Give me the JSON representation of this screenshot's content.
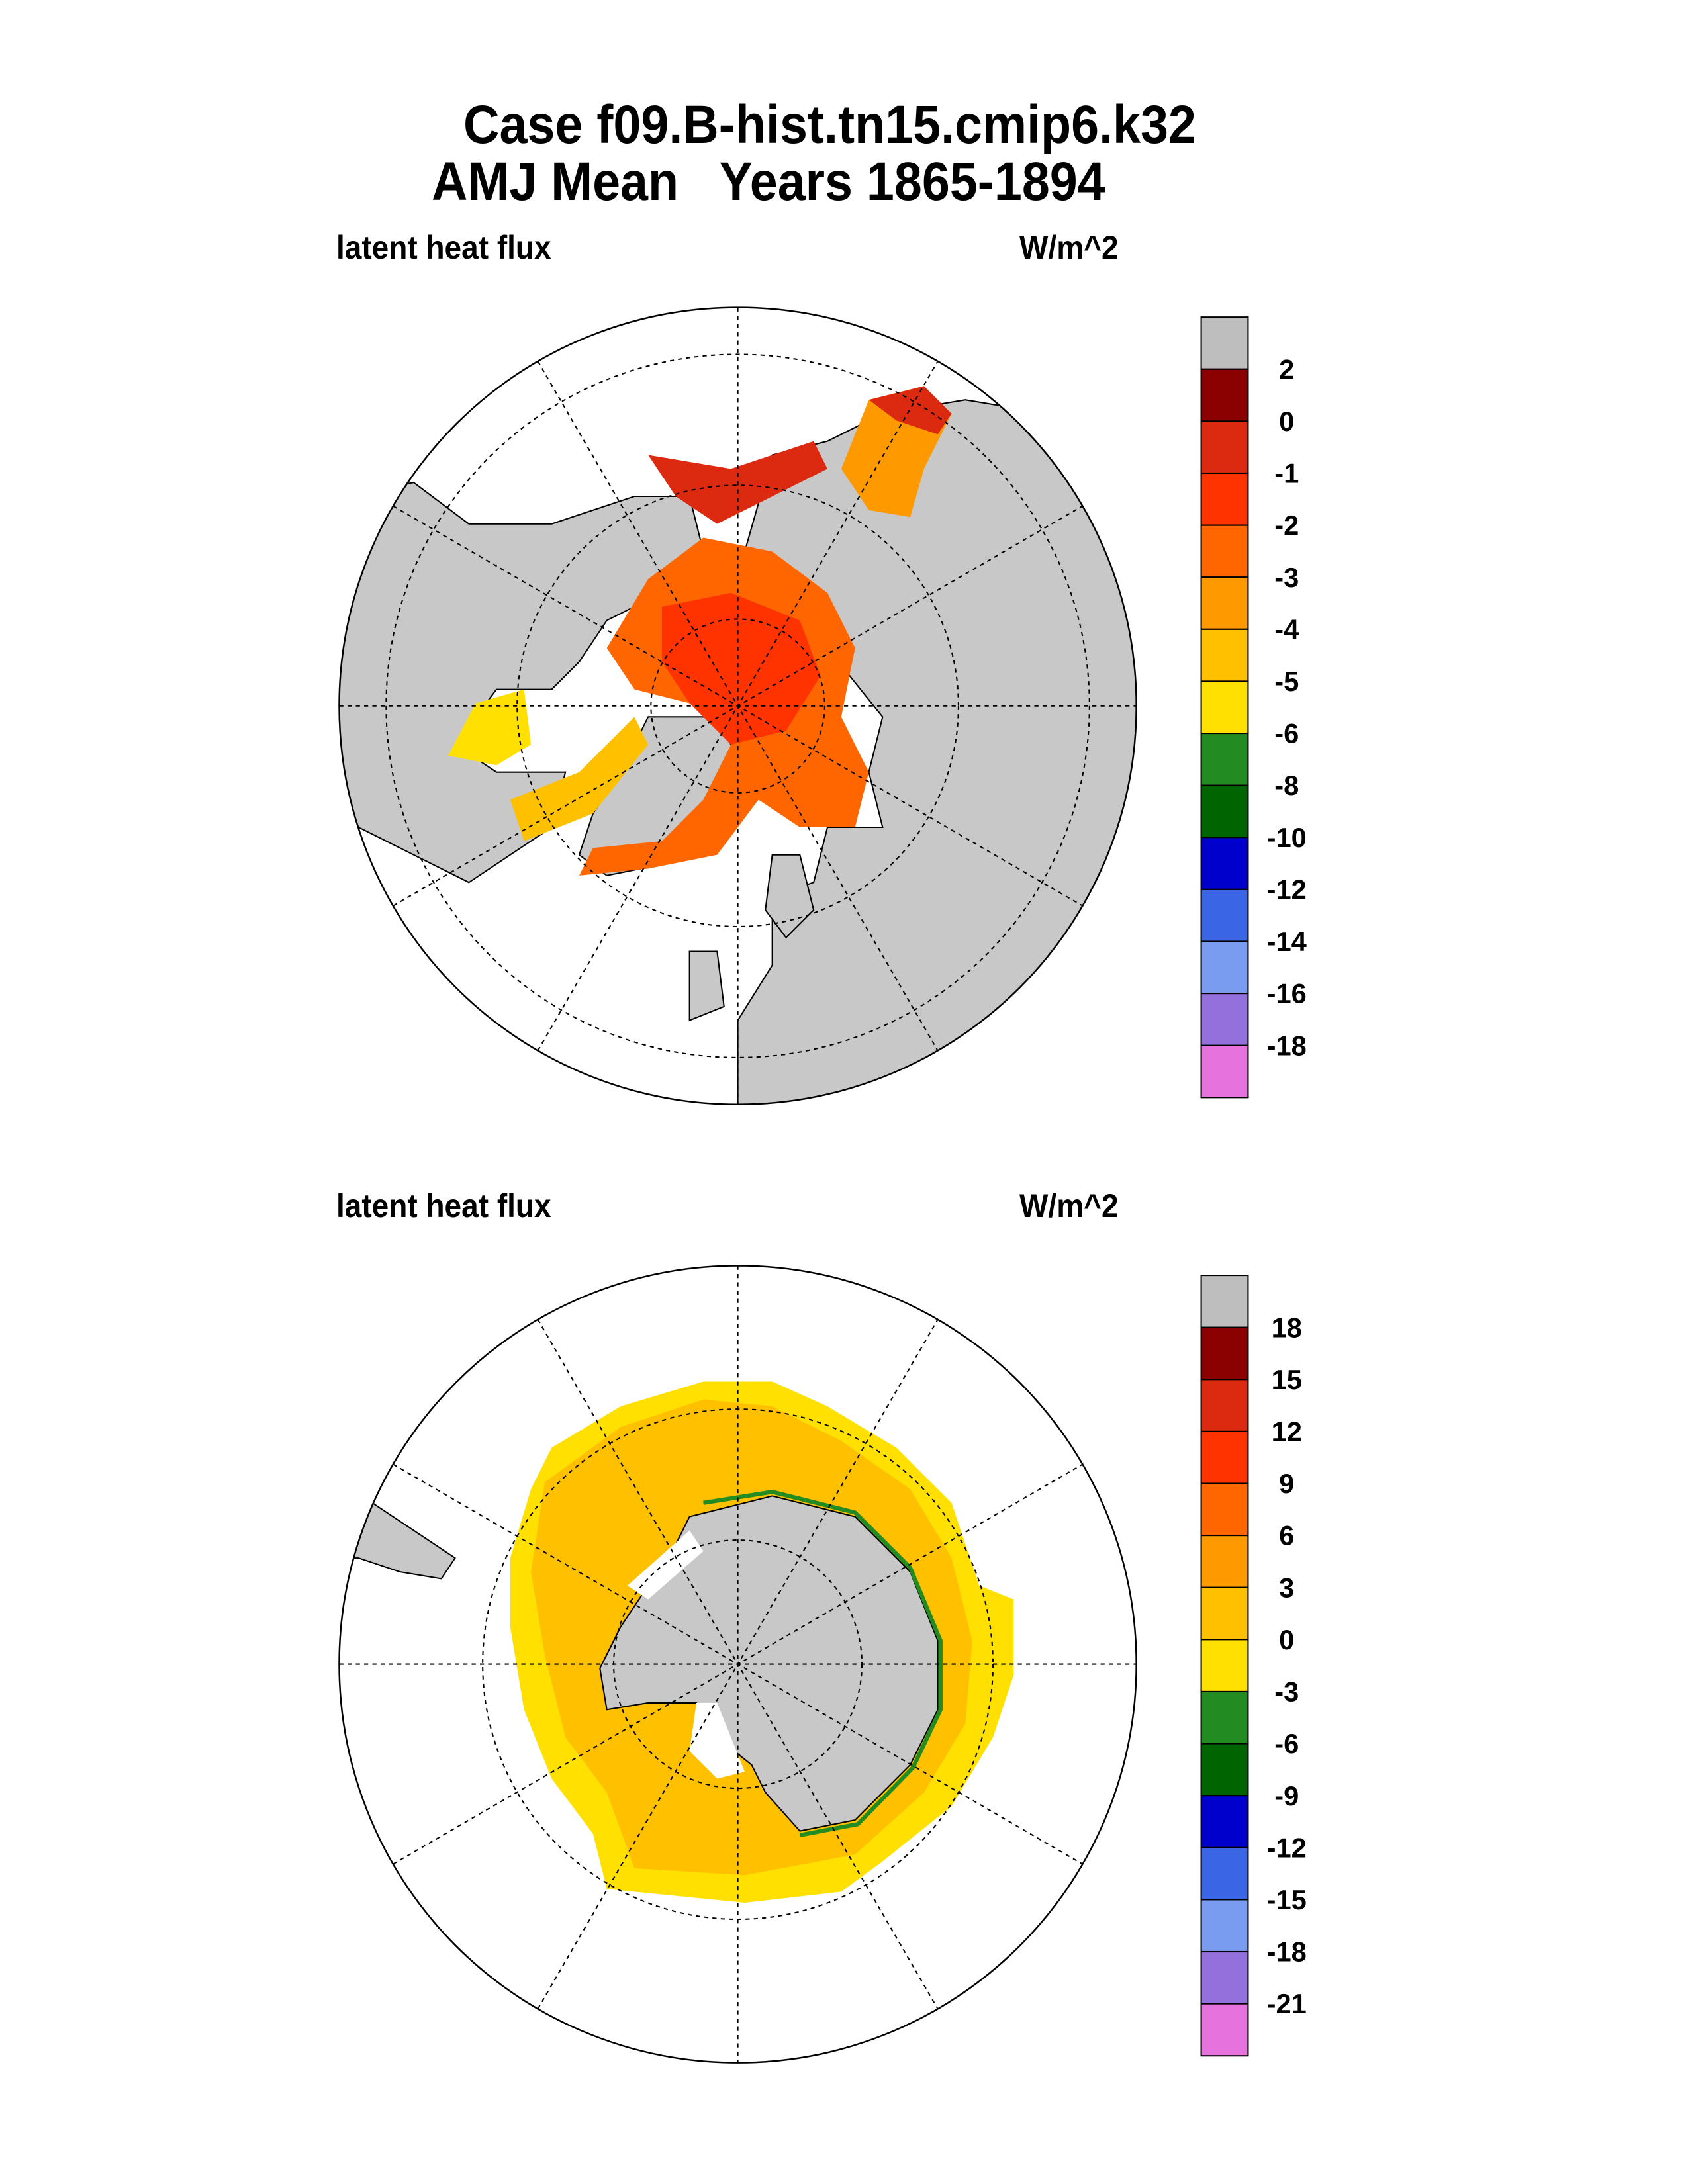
{
  "title": {
    "line1": "Case f09.B-hist.tn15.cmip6.k32",
    "line2": "AMJ Mean   Years 1865-1894"
  },
  "chart_data": [
    {
      "type": "heatmap",
      "projection": "north-polar-stereographic",
      "left_title": "latent heat flux",
      "units": "W/m^2",
      "levels": [
        "2",
        "0",
        "-1",
        "-2",
        "-3",
        "-4",
        "-5",
        "-6",
        "-8",
        "-10",
        "-12",
        "-14",
        "-16",
        "-18"
      ],
      "colors": [
        "#bebebe",
        "#8b0000",
        "#dc2a10",
        "#ff3300",
        "#ff6600",
        "#ff9900",
        "#ffc000",
        "#ffe000",
        "#228b22",
        "#006400",
        "#0000cd",
        "#3a66e6",
        "#799cf0",
        "#9370db",
        "#e673dd"
      ],
      "land_color": "#c8c8c8"
    },
    {
      "type": "heatmap",
      "projection": "south-polar-stereographic",
      "left_title": "latent heat flux",
      "units": "W/m^2",
      "levels": [
        "18",
        "15",
        "12",
        "9",
        "6",
        "3",
        "0",
        "-3",
        "-6",
        "-9",
        "-12",
        "-15",
        "-18",
        "-21"
      ],
      "colors": [
        "#bebebe",
        "#8b0000",
        "#dc2a10",
        "#ff3300",
        "#ff6600",
        "#ff9900",
        "#ffc000",
        "#ffe000",
        "#228b22",
        "#006400",
        "#0000cd",
        "#3a66e6",
        "#799cf0",
        "#9370db",
        "#e673dd"
      ],
      "land_color": "#c8c8c8"
    }
  ]
}
